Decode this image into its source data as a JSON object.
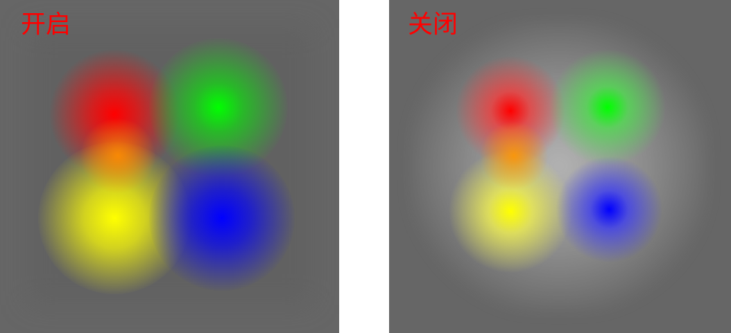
{
  "panels": {
    "on": {
      "label": "开启",
      "label_color": "#ff0000",
      "background": "#666666"
    },
    "off": {
      "label": "关闭",
      "label_color": "#ff0000",
      "background": "#666666"
    }
  },
  "colors": {
    "red": "#ff0000",
    "green": "#00ff00",
    "yellow": "#ffff00",
    "blue": "#0000ff",
    "separator": "#ffffff"
  }
}
